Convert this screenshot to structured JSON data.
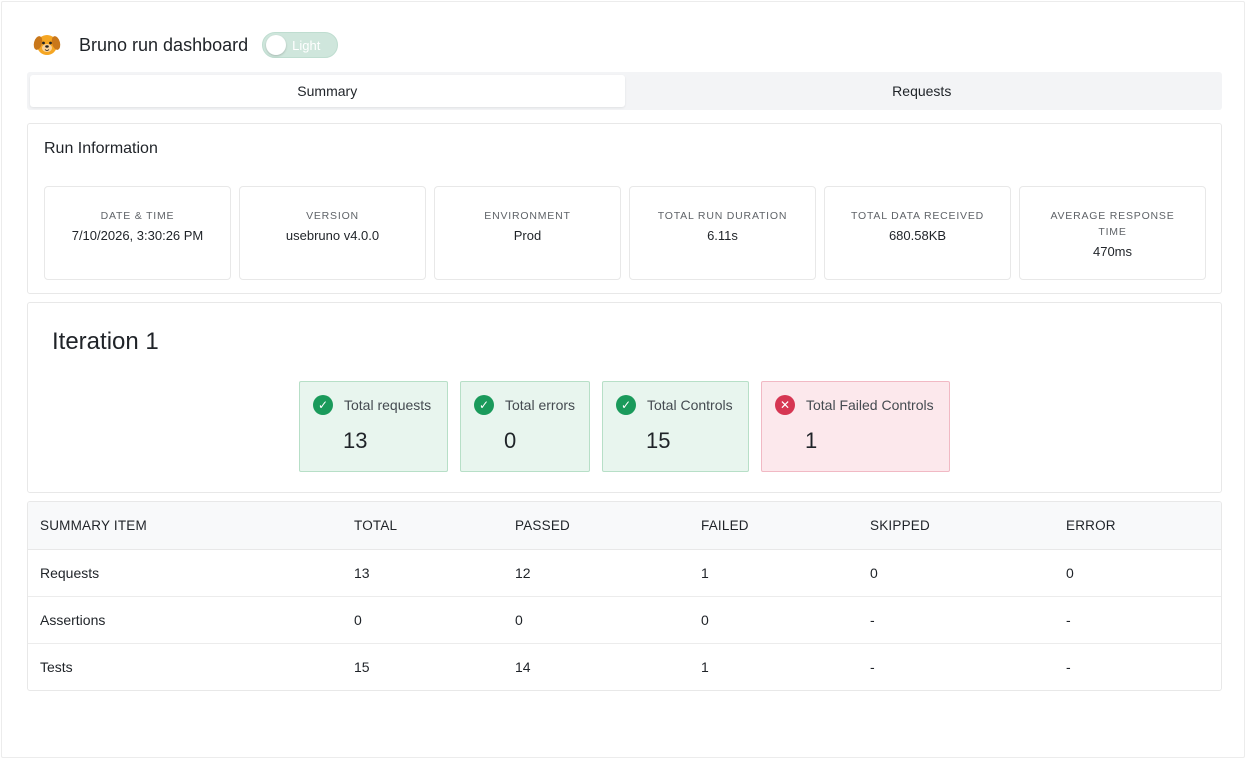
{
  "header": {
    "title": "Bruno run dashboard",
    "theme_toggle_label": "Light"
  },
  "tabs": [
    {
      "label": "Summary",
      "active": true
    },
    {
      "label": "Requests",
      "active": false
    }
  ],
  "run_info": {
    "title": "Run Information",
    "cards": [
      {
        "label": "DATE & TIME",
        "value": "7/10/2026, 3:30:26 PM"
      },
      {
        "label": "VERSION",
        "value": "usebruno v4.0.0"
      },
      {
        "label": "ENVIRONMENT",
        "value": "Prod"
      },
      {
        "label": "TOTAL RUN DURATION",
        "value": "6.11s"
      },
      {
        "label": "TOTAL DATA RECEIVED",
        "value": "680.58KB"
      },
      {
        "label": "AVERAGE RESPONSE TIME",
        "value": "470ms"
      }
    ]
  },
  "iteration": {
    "title": "Iteration 1",
    "stats": [
      {
        "label": "Total requests",
        "value": "13",
        "status": "ok",
        "icon": "check-circle-icon"
      },
      {
        "label": "Total errors",
        "value": "0",
        "status": "ok",
        "icon": "check-circle-icon"
      },
      {
        "label": "Total Controls",
        "value": "15",
        "status": "ok",
        "icon": "check-circle-icon"
      },
      {
        "label": "Total Failed Controls",
        "value": "1",
        "status": "bad",
        "icon": "x-circle-icon"
      }
    ]
  },
  "summary_table": {
    "headers": [
      "SUMMARY ITEM",
      "TOTAL",
      "PASSED",
      "FAILED",
      "SKIPPED",
      "ERROR"
    ],
    "rows": [
      [
        "Requests",
        "13",
        "12",
        "1",
        "0",
        "0"
      ],
      [
        "Assertions",
        "0",
        "0",
        "0",
        "-",
        "-"
      ],
      [
        "Tests",
        "15",
        "14",
        "1",
        "-",
        "-"
      ]
    ]
  },
  "colors": {
    "success": "#1a9a5b",
    "danger": "#d63652",
    "success_bg": "#e8f5ee",
    "danger_bg": "#fce8ec"
  }
}
